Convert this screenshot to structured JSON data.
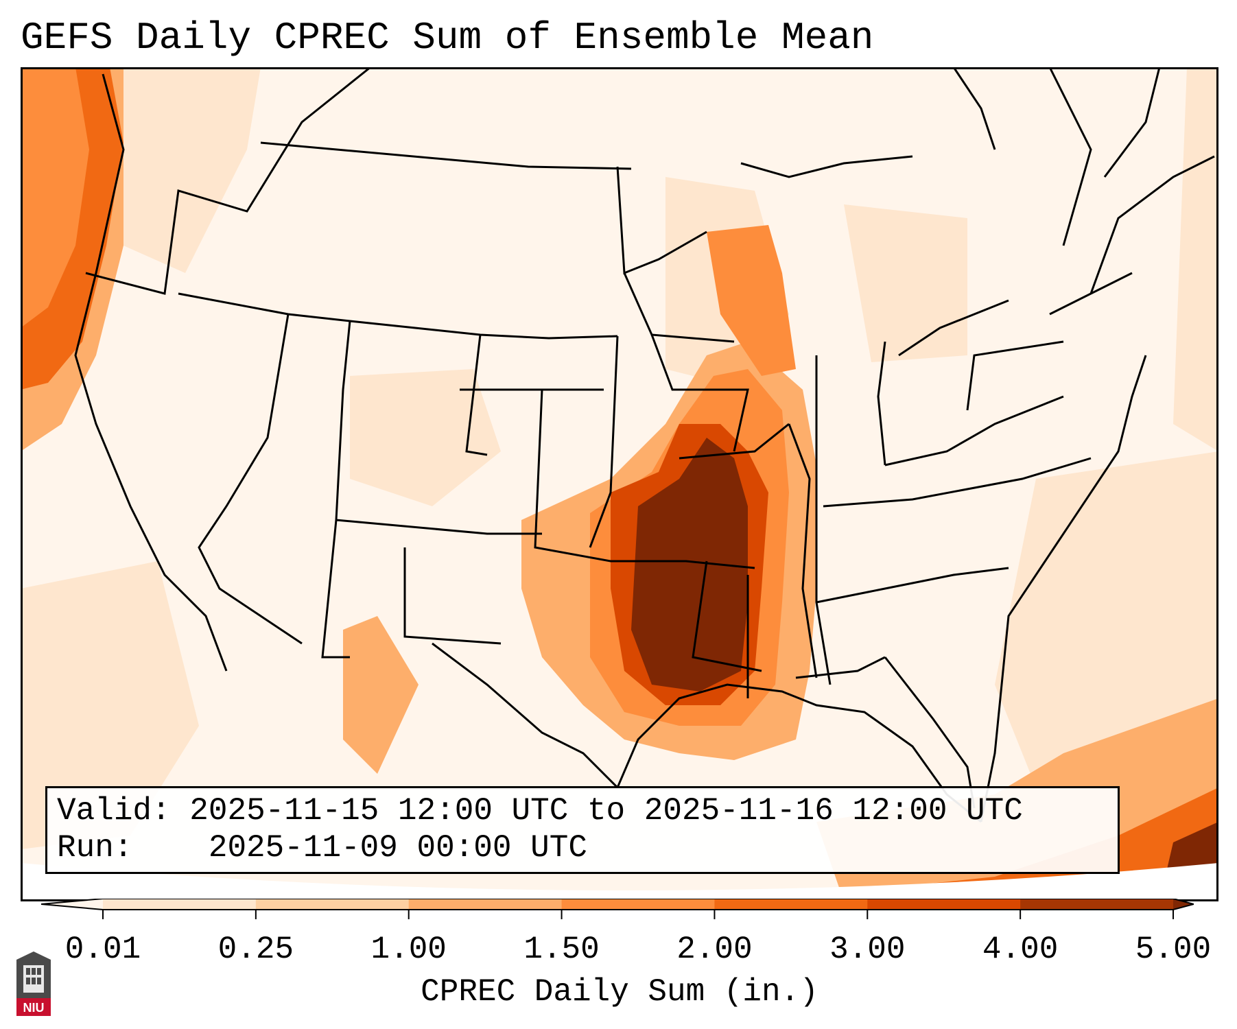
{
  "title": "GEFS Daily CPREC Sum of Ensemble Mean",
  "info": {
    "valid_label": "Valid:",
    "valid_value": "2025-11-15 12:00 UTC to 2025-11-16 12:00 UTC",
    "run_label": "Run:",
    "run_value": "2025-11-09 00:00 UTC"
  },
  "colorbar": {
    "label": "CPREC Daily Sum (in.)",
    "ticks": [
      "0.01",
      "0.25",
      "1.00",
      "1.50",
      "2.00",
      "3.00",
      "4.00",
      "5.00"
    ],
    "colors": [
      "#fff5eb",
      "#fee6ce",
      "#fdd0a2",
      "#fdae6b",
      "#fd8d3c",
      "#f16913",
      "#d94801",
      "#a63603",
      "#7f2704"
    ]
  },
  "logo": {
    "text": "NIU"
  },
  "map": {
    "region": "Contiguous United States"
  }
}
